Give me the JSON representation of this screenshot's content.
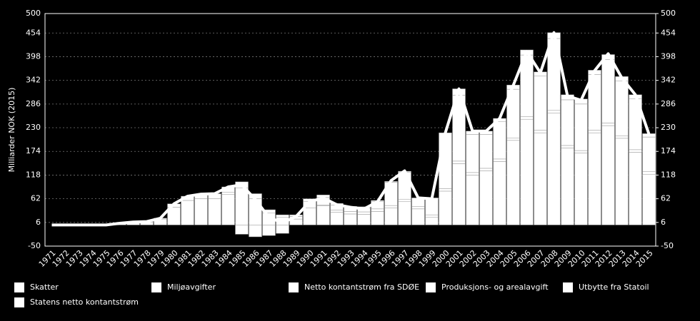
{
  "chart_data": {
    "type": "bar",
    "stacked": true,
    "y_label": "Milliarder NOK (2015)",
    "categories": [
      "1971",
      "1972",
      "1973",
      "1974",
      "1975",
      "1976",
      "1977",
      "1978",
      "1979",
      "1980",
      "1981",
      "1982",
      "1983",
      "1984",
      "1985",
      "1986",
      "1987",
      "1988",
      "1989",
      "1990",
      "1991",
      "1992",
      "1993",
      "1994",
      "1995",
      "1996",
      "1997",
      "1998",
      "1999",
      "2000",
      "2001",
      "2002",
      "2003",
      "2004",
      "2005",
      "2006",
      "2007",
      "2008",
      "2009",
      "2010",
      "2011",
      "2012",
      "2013",
      "2014",
      "2015"
    ],
    "series": [
      {
        "name": "Skatter",
        "color": "#ffffff",
        "values": [
          0,
          0,
          0,
          0,
          0,
          3,
          6,
          7,
          14,
          42,
          58,
          62,
          62,
          72,
          88,
          62,
          28,
          18,
          14,
          40,
          45,
          30,
          26,
          25,
          32,
          40,
          55,
          38,
          18,
          80,
          145,
          118,
          128,
          150,
          200,
          250,
          218,
          265,
          182,
          170,
          218,
          235,
          205,
          172,
          120
        ]
      },
      {
        "name": "Miljøavgifter",
        "color": "#ffffff",
        "values": [
          0,
          0,
          0,
          0,
          0,
          0,
          0,
          0,
          0,
          0,
          0,
          0,
          0,
          0,
          0,
          0,
          0,
          0,
          0,
          0,
          2,
          5,
          6,
          6,
          6,
          6,
          6,
          6,
          6,
          6,
          6,
          6,
          6,
          6,
          6,
          6,
          6,
          6,
          6,
          6,
          6,
          6,
          6,
          6,
          6
        ]
      },
      {
        "name": "Netto kontantstrøm fra SDØE",
        "color": "#ffffff",
        "values": [
          0,
          0,
          0,
          0,
          0,
          0,
          0,
          0,
          0,
          0,
          0,
          0,
          0,
          5,
          -22,
          -28,
          -25,
          -20,
          6,
          16,
          18,
          12,
          10,
          10,
          18,
          55,
          64,
          20,
          40,
          132,
          156,
          90,
          80,
          88,
          115,
          146,
          128,
          170,
          108,
          110,
          132,
          150,
          130,
          120,
          82
        ]
      },
      {
        "name": "Produksjons- og arealavgift",
        "color": "#ffffff",
        "values": [
          0,
          0,
          0,
          0,
          0,
          1,
          1,
          1,
          2,
          8,
          10,
          11,
          12,
          13,
          14,
          12,
          8,
          6,
          4,
          6,
          6,
          4,
          2,
          2,
          2,
          2,
          2,
          0,
          0,
          0,
          0,
          0,
          0,
          0,
          0,
          0,
          0,
          0,
          0,
          0,
          0,
          0,
          0,
          0,
          0
        ]
      },
      {
        "name": "Utbytte fra Statoil",
        "color": "#ffffff",
        "values": [
          0,
          0,
          0,
          0,
          0,
          0,
          0,
          0,
          0,
          0,
          0,
          0,
          0,
          0,
          0,
          0,
          0,
          0,
          0,
          0,
          0,
          0,
          0,
          0,
          0,
          0,
          0,
          0,
          0,
          0,
          15,
          8,
          8,
          8,
          10,
          12,
          10,
          14,
          12,
          12,
          10,
          12,
          10,
          10,
          8
        ]
      },
      {
        "name": "Statens netto kontantstrøm",
        "color": "#ffffff",
        "type": "line",
        "values": [
          0,
          0,
          0,
          0,
          0,
          4,
          7,
          8,
          16,
          50,
          68,
          73,
          74,
          90,
          95,
          60,
          18,
          5,
          20,
          55,
          64,
          48,
          42,
          38,
          55,
          105,
          128,
          64,
          62,
          218,
          322,
          222,
          222,
          252,
          330,
          410,
          360,
          455,
          305,
          295,
          365,
          405,
          348,
          308,
          215
        ]
      }
    ],
    "ylim": [
      -50,
      500
    ],
    "yticks": [
      -50,
      6,
      62,
      118,
      174,
      230,
      286,
      342,
      398,
      454,
      500
    ],
    "y2lim": [
      -50,
      500
    ],
    "y2ticks": [
      -50,
      6,
      62,
      118,
      174,
      230,
      286,
      342,
      398,
      454,
      500
    ],
    "grid": true
  }
}
